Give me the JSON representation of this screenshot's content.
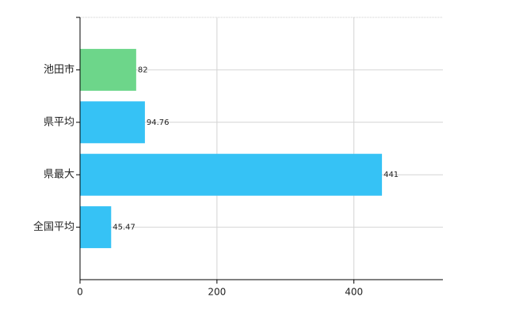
{
  "chart_data": {
    "type": "bar",
    "orientation": "horizontal",
    "categories": [
      "池田市",
      "県平均",
      "県最大",
      "全国平均"
    ],
    "values": [
      82,
      94.76,
      441,
      45.47
    ],
    "colors": [
      "#6dd68a",
      "#36c2f5",
      "#36c2f5",
      "#36c2f5"
    ],
    "xlim": [
      0,
      530
    ],
    "xticks": [
      0,
      200,
      400
    ],
    "grid": true
  }
}
